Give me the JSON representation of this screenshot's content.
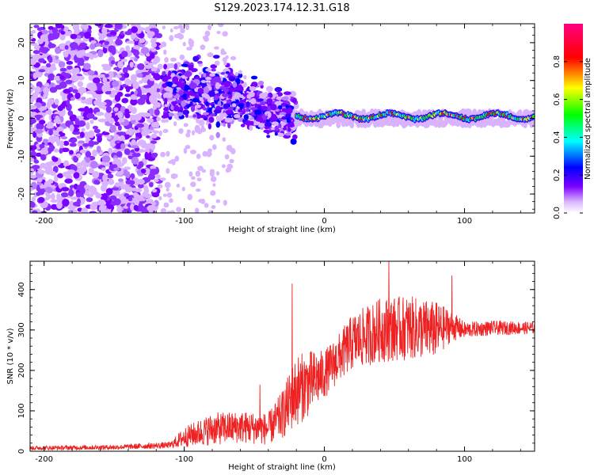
{
  "title": "S129.2023.174.12.31.G18",
  "chart_data": [
    {
      "type": "heatmap",
      "xlabel": "Height of straight line (km)",
      "ylabel": "Frequency (Hz)",
      "xlim": [
        -210,
        150
      ],
      "ylim": [
        -25,
        25
      ],
      "xticks": [
        -200,
        -100,
        0,
        100
      ],
      "yticks": [
        -20,
        -10,
        0,
        10,
        20
      ],
      "colorbar": {
        "label": "Normalized spectral amplitude",
        "range": [
          0.0,
          1.0
        ],
        "ticks": [
          0.0,
          0.2,
          0.4,
          0.6,
          0.8
        ],
        "colors": [
          "#ffffff",
          "#d9b3ff",
          "#7a00ff",
          "#0000ff",
          "#00ffff",
          "#00ff00",
          "#ffff00",
          "#ff0000",
          "#ff0080"
        ]
      },
      "regions": [
        {
          "x": [
            -210,
            -120
          ],
          "freq": [
            -25,
            25
          ],
          "level": 0.1
        },
        {
          "x": [
            -115,
            -20
          ],
          "freq": [
            -12,
            14
          ],
          "level": 0.3
        },
        {
          "x": [
            -20,
            150
          ],
          "freq": [
            -2,
            2
          ],
          "level": 0.6
        }
      ]
    },
    {
      "type": "line",
      "xlabel": "Height of straight line (km)",
      "ylabel": "SNR (10 * v/v)",
      "xlim": [
        -210,
        150
      ],
      "ylim": [
        0,
        470
      ],
      "xticks": [
        -200,
        -100,
        0,
        100
      ],
      "yticks": [
        0,
        100,
        200,
        300,
        400
      ],
      "color": "#ee2222",
      "envelope": {
        "x": [
          -210,
          -150,
          -110,
          -100,
          -80,
          -60,
          -40,
          -30,
          -20,
          -10,
          0,
          10,
          20,
          40,
          60,
          80,
          90,
          100,
          120,
          150
        ],
        "y": [
          8,
          10,
          15,
          35,
          55,
          60,
          55,
          90,
          150,
          170,
          190,
          230,
          270,
          300,
          305,
          300,
          310,
          300,
          305,
          305
        ],
        "amp": [
          5,
          6,
          8,
          25,
          40,
          40,
          40,
          60,
          90,
          80,
          60,
          60,
          70,
          80,
          80,
          70,
          40,
          20,
          18,
          15
        ]
      },
      "peaks": [
        {
          "x": -23,
          "y": 415
        },
        {
          "x": 46,
          "y": 470
        },
        {
          "x": 91,
          "y": 435
        },
        {
          "x": -46,
          "y": 165
        }
      ]
    }
  ]
}
